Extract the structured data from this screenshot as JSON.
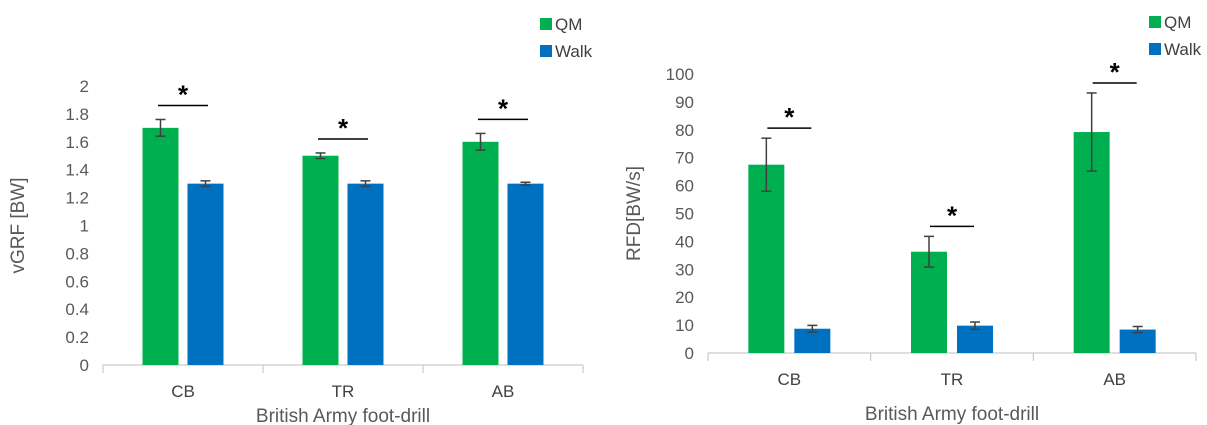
{
  "colors": {
    "qm": "#00B050",
    "walk": "#0070C0",
    "axis": "#bfbfbf",
    "error": "#404040"
  },
  "chart_data": [
    {
      "type": "bar",
      "categories": [
        "CB",
        "TR",
        "AB"
      ],
      "series": [
        {
          "name": "QM",
          "values": [
            1.7,
            1.5,
            1.6
          ],
          "errors": [
            0.06,
            0.02,
            0.06
          ]
        },
        {
          "name": "Walk",
          "values": [
            1.3,
            1.3,
            1.3
          ],
          "errors": [
            0.02,
            0.02,
            0.01
          ]
        }
      ],
      "significance": [
        "*",
        "*",
        "*"
      ],
      "xlabel": "British Army foot-drill",
      "ylabel": "vGRF [BW]",
      "ylim": [
        0,
        2
      ],
      "yticks": [
        "0",
        "0.2",
        "0.4",
        "0.6",
        "0.8",
        "1",
        "1.2",
        "1.4",
        "1.6",
        "1.8",
        "2"
      ],
      "legend_position": "top-right",
      "grid": false
    },
    {
      "type": "bar",
      "categories": [
        "CB",
        "TR",
        "AB"
      ],
      "series": [
        {
          "name": "QM",
          "values": [
            67.5,
            36.3,
            79.2
          ],
          "errors": [
            9.5,
            5.5,
            14
          ]
        },
        {
          "name": "Walk",
          "values": [
            8.7,
            9.8,
            8.4
          ],
          "errors": [
            1.2,
            1.3,
            1.1
          ]
        }
      ],
      "significance": [
        "*",
        "*",
        "*"
      ],
      "xlabel": "British Army foot-drill",
      "ylabel": "RFD[BW/s]",
      "ylim": [
        0,
        100
      ],
      "yticks": [
        "0",
        "10",
        "20",
        "30",
        "40",
        "50",
        "60",
        "70",
        "80",
        "90",
        "100"
      ],
      "legend_position": "top-right",
      "grid": false
    }
  ]
}
